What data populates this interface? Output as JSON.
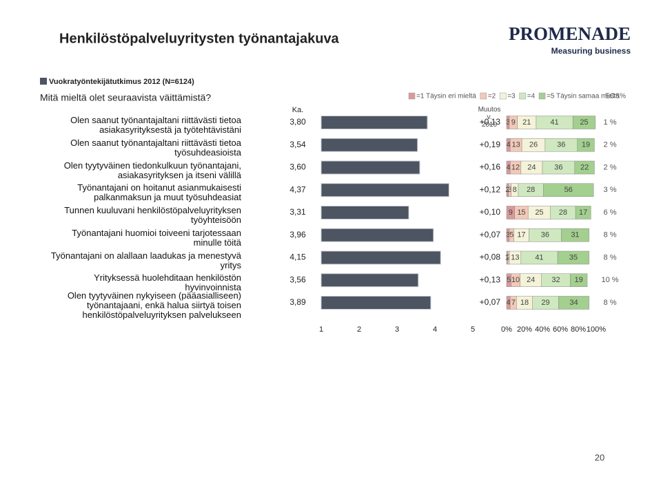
{
  "title": "Henkilöstöpalveluyritysten työnantajakuva",
  "logo": {
    "name": "PROMENADE",
    "tagline": "Measuring business"
  },
  "question": "Mitä mieltä olet seuraavista väittämistä?",
  "page_number": "20",
  "chart_data": [
    {
      "type": "bar",
      "orientation": "horizontal",
      "series_name": "Vuokratyöntekijätutkimus 2012 (N=6124)",
      "value_header": "Ka.",
      "categories": [
        "Olen saanut työnantajaltani riittävästi tietoa\nasiakasyrityksestä ja työtehtävistäni",
        "Olen saanut työnantajaltani riittävästi tietoa\ntyösuhdeasioista",
        "Olen tyytyväinen tiedonkulkuun työnantajani,\nasiakasyrityksen ja itseni välillä",
        "Työnantajani on hoitanut asianmukaisesti\npalkanmaksun ja muut työsuhdeasiat",
        "Tunnen kuuluvani henkilöstöpalveluyrityksen\ntyöyhteisöön",
        "Työnantajani huomioi toiveeni tarjotessaan\nminulle töitä",
        "Työnantajani on alallaan laadukas ja menestyvä\nyritys",
        "Yrityksessä huolehditaan henkilöstön\nhyvinvoinnista",
        "Olen tyytyväinen nykyiseen (pääasialliseen)\ntyönantajaani, enkä halua siirtyä toisen\nhenkilöstöpalveluyrityksen palvelukseen"
      ],
      "values": [
        3.8,
        3.54,
        3.6,
        4.37,
        3.31,
        3.96,
        4.15,
        3.56,
        3.89
      ],
      "value_labels": [
        "3,80",
        "3,54",
        "3,60",
        "4,37",
        "3,31",
        "3,96",
        "4,15",
        "3,56",
        "3,89"
      ],
      "color": "#4d5462",
      "xlim": [
        1,
        5
      ],
      "xticks": [
        1,
        2,
        3,
        4,
        5
      ],
      "change": {
        "header": "Muutos v.\n2010",
        "values": [
          0.13,
          0.19,
          0.16,
          0.12,
          0.1,
          0.07,
          0.08,
          0.13,
          0.07
        ],
        "value_labels": [
          "+0,13",
          "+0,19",
          "+0,16",
          "+0,12",
          "+0,10",
          "+0,07",
          "+0,08",
          "+0,13",
          "+0,07"
        ]
      }
    },
    {
      "type": "stacked_bar",
      "orientation": "horizontal",
      "series": [
        {
          "name": "=1 Täysin eri mieltä",
          "color": "#d99a9c",
          "values": [
            3,
            4,
            4,
            2,
            9,
            3,
            1,
            5,
            4
          ]
        },
        {
          "name": "=2",
          "color": "#f2c9b8",
          "values": [
            9,
            13,
            12,
            3,
            15,
            5,
            2,
            10,
            7
          ]
        },
        {
          "name": "=3",
          "color": "#f4f2d8",
          "values": [
            21,
            26,
            24,
            8,
            25,
            17,
            13,
            24,
            18
          ]
        },
        {
          "name": "=4",
          "color": "#cfe8c0",
          "values": [
            41,
            36,
            36,
            28,
            28,
            36,
            41,
            32,
            29
          ]
        },
        {
          "name": "=5 Täysin samaa mieltä",
          "color": "#a3cf8f",
          "values": [
            25,
            19,
            22,
            56,
            17,
            31,
            35,
            19,
            34
          ]
        }
      ],
      "xlim": [
        0,
        100
      ],
      "xticks": [
        {
          "value": 0,
          "label": "0%"
        },
        {
          "value": 20,
          "label": "20%"
        },
        {
          "value": 40,
          "label": "40%"
        },
        {
          "value": 60,
          "label": "60%"
        },
        {
          "value": 80,
          "label": "80%"
        },
        {
          "value": 100,
          "label": "100%"
        }
      ],
      "eos": {
        "header": "EOS%",
        "values": [
          1,
          2,
          2,
          3,
          6,
          8,
          8,
          10,
          8
        ],
        "value_labels": [
          "1 %",
          "2 %",
          "2 %",
          "3 %",
          "6 %",
          "8 %",
          "8 %",
          "10 %",
          "8 %"
        ]
      }
    }
  ]
}
